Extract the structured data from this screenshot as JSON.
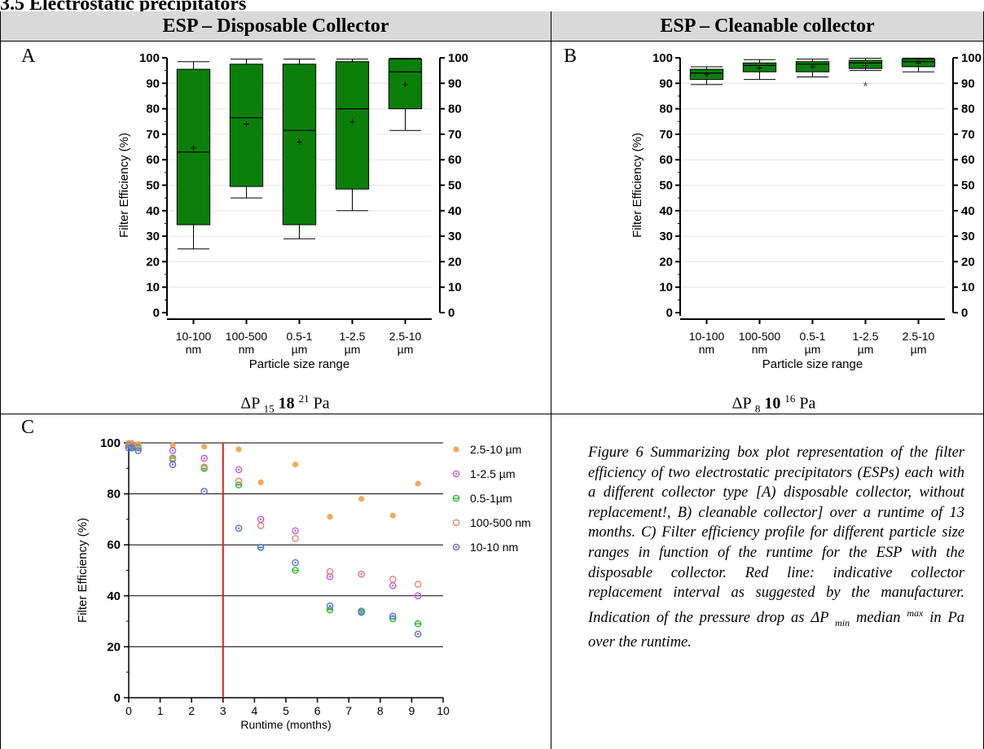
{
  "section_heading": "3.5    Electrostatic precipitators",
  "table": {
    "col1_header": "ESP – Disposable Collector",
    "col2_header": "ESP – Cleanable collector",
    "panel_a_letter": "A",
    "panel_b_letter": "B",
    "panel_c_letter": "C",
    "panel_a_dp": {
      "prefix": "ΔP",
      "min": "15",
      "median": "18",
      "max": "21",
      "unit": "Pa"
    },
    "panel_b_dp": {
      "prefix": "ΔP",
      "min": "8",
      "median": "10",
      "max": "16",
      "unit": "Pa"
    },
    "figure_caption": {
      "main": "Figure 6 Summarizing box plot representation of the filter efficiency of two electrostatic precipitators (ESPs) each with a different collector type [A) disposable collector, without replacement!, B) cleanable collector] over a runtime of 13 months. C) Filter efficiency profile for different particle size ranges in function of the runtime for the ESP with the disposable collector. Red line: indicative collector replacement interval as suggested by the manufacturer. Indication of the pressure drop as",
      "dp_symbol": "ΔP",
      "min_sub": "min",
      "median_word": "median",
      "max_sup": "max",
      "tail": "in Pa over the  runtime."
    }
  },
  "colors": {
    "box_fill": "#0a7f0a",
    "header_bg": "#d9d9d9",
    "series_2_5_10": "#f5a85a",
    "series_1_2_5": "#c05ae0",
    "series_0_5_1": "#2eb82e",
    "series_100_500": "#f08070",
    "series_10_10": "#5a6ee0",
    "replacement_line": "#e0201a"
  },
  "chart_data": [
    {
      "type": "box",
      "ylabel": "Filter Efficiency (%)",
      "xlabel": "Particle size range",
      "ylim": [
        0,
        100
      ],
      "yticks": [
        "0",
        "10",
        "20",
        "30",
        "40",
        "50",
        "60",
        "70",
        "80",
        "90",
        "100"
      ],
      "categories": [
        {
          "line1": "10-100",
          "line2": "nm"
        },
        {
          "line1": "100-500",
          "line2": "nm"
        },
        {
          "line1": "0.5-1",
          "line2": "µm"
        },
        {
          "line1": "1-2.5",
          "line2": "µm"
        },
        {
          "line1": "2.5-10",
          "line2": "µm"
        }
      ],
      "boxes": [
        {
          "min": 25,
          "q1": 34.5,
          "median": 63,
          "mean": 64.5,
          "q3": 95.5,
          "max": 98.5
        },
        {
          "min": 45,
          "q1": 49.5,
          "median": 76.5,
          "mean": 74,
          "q3": 97.5,
          "max": 99.5
        },
        {
          "min": 29,
          "q1": 34.5,
          "median": 71.5,
          "mean": 67,
          "q3": 97.5,
          "max": 99.5
        },
        {
          "min": 40,
          "q1": 48.5,
          "median": 80,
          "mean": 75,
          "q3": 98.5,
          "max": 99.5
        },
        {
          "min": 71.5,
          "q1": 80,
          "median": 94.5,
          "mean": 89.5,
          "q3": 99.5,
          "max": 99.8
        }
      ],
      "outliers": []
    },
    {
      "type": "box",
      "ylabel": "Filter Efficiency (%)",
      "xlabel": "Particle size range",
      "ylim": [
        0,
        100
      ],
      "yticks": [
        "0",
        "10",
        "20",
        "30",
        "40",
        "50",
        "60",
        "70",
        "80",
        "90",
        "100"
      ],
      "categories": [
        {
          "line1": "10-100",
          "line2": "nm"
        },
        {
          "line1": "100-500",
          "line2": "nm"
        },
        {
          "line1": "0.5-1",
          "line2": "µm"
        },
        {
          "line1": "1-2.5",
          "line2": "µm"
        },
        {
          "line1": "2.5-10",
          "line2": "µm"
        }
      ],
      "boxes": [
        {
          "min": 89.5,
          "q1": 91.5,
          "median": 94,
          "mean": 93.5,
          "q3": 95.5,
          "max": 96.5
        },
        {
          "min": 91.5,
          "q1": 94.5,
          "median": 97,
          "mean": 96,
          "q3": 98,
          "max": 99.3
        },
        {
          "min": 92.5,
          "q1": 94.5,
          "median": 97.5,
          "mean": 96.5,
          "q3": 98.5,
          "max": 99.5
        },
        {
          "min": 95,
          "q1": 95.8,
          "median": 98,
          "mean": 97,
          "q3": 99,
          "max": 99.8
        },
        {
          "min": 94.5,
          "q1": 96.5,
          "median": 98.5,
          "mean": 98,
          "q3": 99.5,
          "max": 99.9
        }
      ],
      "outliers": [
        {
          "category": 3,
          "value": 89
        }
      ]
    },
    {
      "type": "scatter",
      "ylabel": "Filter Efficiency (%)",
      "xlabel": "Runtime (months)",
      "xlim": [
        0,
        10
      ],
      "ylim": [
        0,
        100
      ],
      "xticks": [
        "0",
        "1",
        "2",
        "3",
        "4",
        "5",
        "6",
        "7",
        "8",
        "9",
        "10"
      ],
      "yticks": [
        "0",
        "20",
        "40",
        "60",
        "80",
        "100"
      ],
      "vline_x": 3,
      "series": [
        {
          "name": "2.5-10 µm",
          "color_key": "series_2_5_10",
          "marker": "filled",
          "points": [
            [
              0,
              100
            ],
            [
              0.1,
              100
            ],
            [
              0.3,
              99.5
            ],
            [
              1.4,
              99
            ],
            [
              2.4,
              98.5
            ],
            [
              3.5,
              97.5
            ],
            [
              4.2,
              84.5
            ],
            [
              5.3,
              91.5
            ],
            [
              6.4,
              71
            ],
            [
              7.4,
              78
            ],
            [
              8.4,
              71.5
            ],
            [
              9.2,
              84
            ]
          ]
        },
        {
          "name": "1-2.5 µm",
          "color_key": "series_1_2_5",
          "marker": "ring-dot",
          "points": [
            [
              0,
              99
            ],
            [
              0.1,
              99
            ],
            [
              0.3,
              98
            ],
            [
              1.4,
              97
            ],
            [
              2.4,
              94
            ],
            [
              3.5,
              89.5
            ],
            [
              4.2,
              70
            ],
            [
              5.3,
              65.5
            ],
            [
              6.4,
              47.5
            ],
            [
              7.4,
              48.5
            ],
            [
              8.4,
              44
            ],
            [
              9.2,
              40
            ]
          ]
        },
        {
          "name": "0.5-1µm",
          "color_key": "series_0_5_1",
          "marker": "ring-bar",
          "points": [
            [
              0,
              99
            ],
            [
              0.1,
              98.5
            ],
            [
              0.3,
              98
            ],
            [
              1.4,
              94
            ],
            [
              2.4,
              90
            ],
            [
              3.5,
              83.5
            ],
            [
              4.2,
              59
            ],
            [
              5.3,
              50
            ],
            [
              6.4,
              34.5
            ],
            [
              7.4,
              34
            ],
            [
              8.4,
              31
            ],
            [
              9.2,
              29
            ]
          ]
        },
        {
          "name": "100-500 nm",
          "color_key": "series_100_500",
          "marker": "ring",
          "points": [
            [
              0,
              99.5
            ],
            [
              0.1,
              99
            ],
            [
              0.3,
              98.5
            ],
            [
              1.4,
              93.5
            ],
            [
              2.4,
              90.5
            ],
            [
              3.5,
              85
            ],
            [
              4.2,
              67.5
            ],
            [
              5.3,
              62.5
            ],
            [
              6.4,
              49.5
            ],
            [
              7.4,
              48.5
            ],
            [
              8.4,
              46.5
            ],
            [
              9.2,
              44.5
            ]
          ]
        },
        {
          "name": "10-10 nm",
          "color_key": "series_10_10",
          "marker": "ring-dot",
          "points": [
            [
              0,
              98
            ],
            [
              0.1,
              98
            ],
            [
              0.3,
              97
            ],
            [
              1.4,
              91.5
            ],
            [
              2.4,
              81
            ],
            [
              3.5,
              66.5
            ],
            [
              4.2,
              59
            ],
            [
              5.3,
              53
            ],
            [
              6.4,
              36
            ],
            [
              7.4,
              33.5
            ],
            [
              8.4,
              32
            ],
            [
              9.2,
              25
            ]
          ]
        }
      ]
    }
  ]
}
